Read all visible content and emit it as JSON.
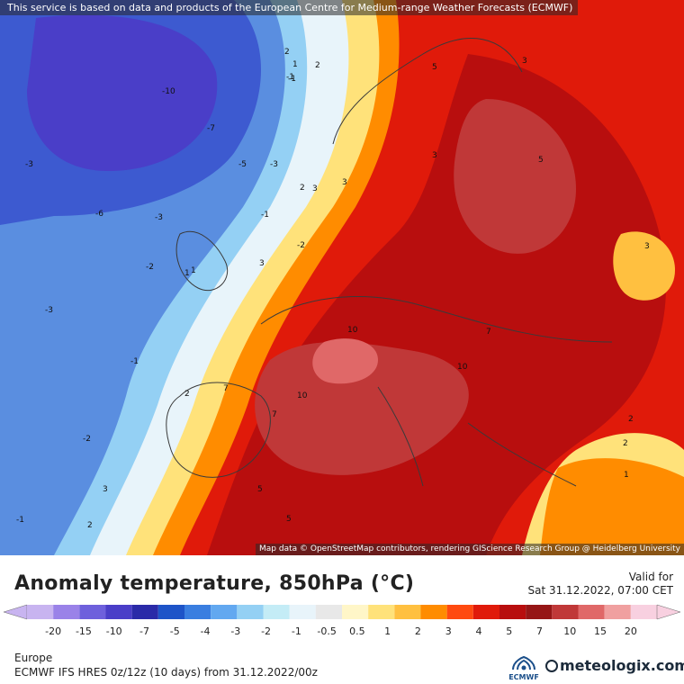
{
  "header": {
    "attribution": "This service is based on data and products of the European Centre for Medium-range Weather Forecasts (ECMWF)"
  },
  "map": {
    "attribution": "Map data © OpenStreetMap contributors, rendering GIScience Research Group @ Heidelberg University",
    "contour_labels": [
      "-10",
      "-7",
      "-5",
      "-3",
      "-3",
      "-3",
      "-2",
      "-2",
      "-1",
      "-1",
      "-1",
      "1",
      "1",
      "2",
      "2",
      "2",
      "3",
      "3",
      "3",
      "3",
      "5",
      "5",
      "5",
      "7",
      "7",
      "7",
      "10",
      "10",
      "10",
      "3",
      "2",
      "2",
      "1",
      "3",
      "-1",
      "2",
      "-2",
      "1",
      "2",
      "3",
      "5",
      "-6",
      "-1",
      "-3"
    ],
    "colors": {
      "sea_cold": "#3d5ad0",
      "ocean_blue": "#5a8ee0",
      "warm": "#d83a1a",
      "hot": "#a81818",
      "hottest": "#c8484a"
    }
  },
  "footer": {
    "title": "Anomaly temperature, 850hPa (°C)",
    "valid_label": "Valid for",
    "valid_date": "Sat 31.12.2022, 07:00 CET",
    "region": "Europe",
    "model": "ECMWF IFS HRES 0z/12z (10 days) from  31.12.2022/00z",
    "ecmwf_logo_text": "ECMWF",
    "brand": "meteologix.com"
  },
  "legend": {
    "colors": [
      "#c8b4f0",
      "#9a82e8",
      "#6e60dc",
      "#4a3ec8",
      "#2a2aa8",
      "#1e54c8",
      "#3a7ee0",
      "#62a8f0",
      "#94d0f4",
      "#c4ecf6",
      "#e8f4fa",
      "#e8e8e8",
      "#fff6c8",
      "#ffe27a",
      "#ffc040",
      "#ff8c00",
      "#ff4a10",
      "#e01a0a",
      "#b80e0e",
      "#961616",
      "#c03838",
      "#e06868",
      "#f0a0a0",
      "#f8d0e0"
    ],
    "labels": [
      "-20",
      "-15",
      "-10",
      "-7",
      "-5",
      "-4",
      "-3",
      "-2",
      "-1",
      "-0.5",
      "0.5",
      "1",
      "2",
      "3",
      "4",
      "5",
      "7",
      "10",
      "15",
      "20"
    ]
  }
}
